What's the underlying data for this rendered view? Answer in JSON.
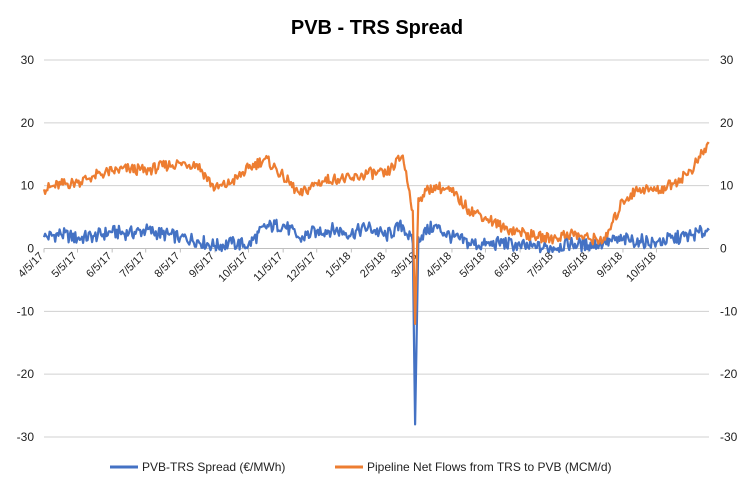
{
  "chart_data": {
    "type": "line",
    "title": "PVB - TRS Spread",
    "y_left": {
      "min": -30,
      "max": 30,
      "ticks": [
        30,
        20,
        10,
        0,
        -10,
        -20,
        -30
      ]
    },
    "y_right": {
      "min": -30,
      "max": 30,
      "ticks": [
        30,
        20,
        10,
        0,
        -10,
        -20,
        -30
      ]
    },
    "x_tick_labels": [
      "4/5/17",
      "5/5/17",
      "6/5/17",
      "7/5/17",
      "8/5/17",
      "9/5/17",
      "10/5/17",
      "11/5/17",
      "12/5/17",
      "1/5/18",
      "2/5/18",
      "3/5/18",
      "4/5/18",
      "5/5/18",
      "6/5/18",
      "7/5/18",
      "8/5/18",
      "9/5/18",
      "10/5/18"
    ],
    "x_range": [
      "4/5/17",
      "11/21/18"
    ],
    "grid": true,
    "legend_position": "bottom",
    "series": [
      {
        "name": "PVB-TRS Spread (€/MWh)",
        "axis": "left",
        "color": "#4472C4",
        "points": [
          [
            "4/5/17",
            1.8
          ],
          [
            "4/20/17",
            2.3
          ],
          [
            "5/5/17",
            1.6
          ],
          [
            "5/20/17",
            2.0
          ],
          [
            "6/5/17",
            2.6
          ],
          [
            "6/20/17",
            2.4
          ],
          [
            "7/5/17",
            2.9
          ],
          [
            "7/20/17",
            2.3
          ],
          [
            "8/5/17",
            1.8
          ],
          [
            "8/20/17",
            1.3
          ],
          [
            "9/5/17",
            0.4
          ],
          [
            "9/20/17",
            0.8
          ],
          [
            "10/5/17",
            0.6
          ],
          [
            "10/20/17",
            3.4
          ],
          [
            "11/5/17",
            3.8
          ],
          [
            "11/20/17",
            1.6
          ],
          [
            "12/5/17",
            2.8
          ],
          [
            "12/20/17",
            3.0
          ],
          [
            "1/5/18",
            2.4
          ],
          [
            "1/20/18",
            3.4
          ],
          [
            "2/5/18",
            2.0
          ],
          [
            "2/20/18",
            3.7
          ],
          [
            "3/1/18",
            0.8
          ],
          [
            "3/3/18",
            -28.0
          ],
          [
            "3/6/18",
            1.8
          ],
          [
            "3/20/18",
            3.6
          ],
          [
            "4/5/18",
            1.8
          ],
          [
            "4/20/18",
            0.9
          ],
          [
            "5/5/18",
            0.5
          ],
          [
            "5/20/18",
            0.9
          ],
          [
            "6/5/18",
            0.4
          ],
          [
            "6/20/18",
            0.1
          ],
          [
            "7/5/18",
            0.2
          ],
          [
            "7/20/18",
            0.8
          ],
          [
            "8/5/18",
            0.5
          ],
          [
            "8/20/18",
            1.0
          ],
          [
            "9/5/18",
            1.4
          ],
          [
            "9/20/18",
            1.2
          ],
          [
            "10/5/18",
            1.0
          ],
          [
            "10/20/18",
            1.6
          ],
          [
            "11/5/18",
            2.1
          ],
          [
            "11/21/18",
            2.9
          ]
        ]
      },
      {
        "name": "Pipeline Net Flows from TRS to PVB (MCM/d)",
        "axis": "right",
        "color": "#ED7D31",
        "points": [
          [
            "4/5/17",
            9.4
          ],
          [
            "4/20/17",
            10.2
          ],
          [
            "5/5/17",
            10.5
          ],
          [
            "5/20/17",
            11.6
          ],
          [
            "6/5/17",
            12.3
          ],
          [
            "6/20/17",
            12.7
          ],
          [
            "7/5/17",
            12.4
          ],
          [
            "7/20/17",
            13.1
          ],
          [
            "8/5/17",
            13.6
          ],
          [
            "8/20/17",
            13.4
          ],
          [
            "9/5/17",
            9.5
          ],
          [
            "9/20/17",
            10.5
          ],
          [
            "10/5/17",
            12.8
          ],
          [
            "10/20/17",
            14.3
          ],
          [
            "11/5/17",
            11.5
          ],
          [
            "11/20/17",
            8.6
          ],
          [
            "12/5/17",
            10.4
          ],
          [
            "12/20/17",
            11.2
          ],
          [
            "1/5/18",
            11.0
          ],
          [
            "1/20/18",
            12.0
          ],
          [
            "2/5/18",
            11.8
          ],
          [
            "2/20/18",
            14.8
          ],
          [
            "3/1/18",
            6.0
          ],
          [
            "3/3/18",
            -12.0
          ],
          [
            "3/6/18",
            8.0
          ],
          [
            "3/20/18",
            10.0
          ],
          [
            "4/5/18",
            9.0
          ],
          [
            "4/20/18",
            6.2
          ],
          [
            "5/5/18",
            5.0
          ],
          [
            "5/20/18",
            3.4
          ],
          [
            "6/5/18",
            2.6
          ],
          [
            "6/20/18",
            1.8
          ],
          [
            "7/5/18",
            1.6
          ],
          [
            "7/20/18",
            2.4
          ],
          [
            "8/5/18",
            1.6
          ],
          [
            "8/20/18",
            1.4
          ],
          [
            "9/5/18",
            7.6
          ],
          [
            "9/20/18",
            9.6
          ],
          [
            "10/5/18",
            9.2
          ],
          [
            "10/20/18",
            10.3
          ],
          [
            "11/5/18",
            12.4
          ],
          [
            "11/21/18",
            16.7
          ]
        ]
      }
    ]
  }
}
